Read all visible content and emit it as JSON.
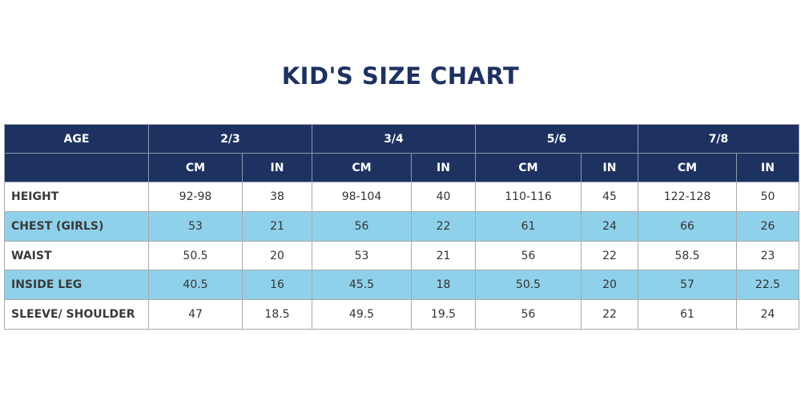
{
  "title": "KID'S SIZE CHART",
  "table": {
    "age_header": "AGE",
    "groups": [
      "2/3",
      "3/4",
      "5/6",
      "7/8"
    ],
    "subheaders": [
      "CM",
      "IN",
      "CM",
      "IN",
      "CM",
      "IN",
      "CM",
      "IN"
    ],
    "rows": [
      [
        "HEIGHT",
        "92-98",
        38,
        "98-104",
        40,
        "110-116",
        45,
        "122-128",
        50
      ],
      [
        "CHEST (GIRLS)",
        53,
        21,
        56,
        22,
        61,
        24,
        66,
        26
      ],
      [
        "WAIST",
        50.5,
        20,
        53,
        21,
        56,
        22,
        58.5,
        23
      ],
      [
        "INSIDE LEG",
        40.5,
        16,
        45.5,
        18,
        50.5,
        20,
        57,
        22.5
      ],
      [
        "SLEEVE/ SHOULDER",
        47,
        18.5,
        49.5,
        19.5,
        56,
        22,
        61,
        24
      ]
    ]
  }
}
